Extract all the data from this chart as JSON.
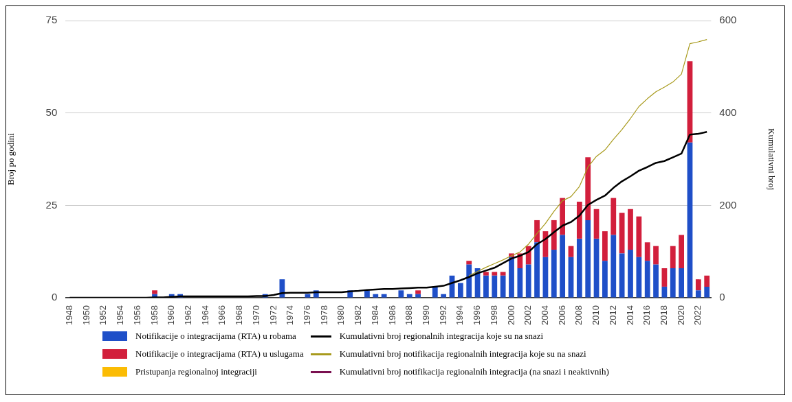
{
  "chart_data": {
    "type": "bar",
    "stacked": true,
    "ylabel": "Broj po godini",
    "y2label": "Kumulativni broj",
    "categories": [
      "1948",
      null,
      "1950",
      null,
      "1952",
      null,
      "1954",
      null,
      "1956",
      null,
      "1958",
      null,
      "1960",
      null,
      "1962",
      null,
      "1964",
      null,
      "1966",
      null,
      "1968",
      null,
      "1970",
      null,
      "1972",
      null,
      "1974",
      null,
      "1976",
      null,
      "1978",
      null,
      "1980",
      null,
      "1982",
      null,
      "1984",
      null,
      "1986",
      null,
      "1988",
      null,
      "1990",
      null,
      "1992",
      null,
      "1994",
      null,
      "1996",
      null,
      "1998",
      null,
      "2000",
      null,
      "2002",
      null,
      "2004",
      null,
      "2006",
      null,
      "2008",
      null,
      "2010",
      null,
      "2012",
      null,
      "2014",
      null,
      "2016",
      null,
      "2018",
      null,
      "2020",
      null,
      "2022",
      null
    ],
    "ylim": [
      0,
      75
    ],
    "yticks": [
      0,
      25,
      50,
      75
    ],
    "y2lim": [
      0,
      600
    ],
    "y2ticks": [
      0,
      200,
      400,
      600
    ],
    "grid": "y",
    "legend": "bottom",
    "series": [
      {
        "name": "Notifikacije o integracijama (RTA) u robama",
        "color": "#1f4fc8",
        "values": [
          null,
          null,
          null,
          null,
          null,
          null,
          null,
          null,
          null,
          null,
          1,
          null,
          1,
          1,
          null,
          null,
          null,
          null,
          null,
          null,
          null,
          null,
          null,
          1,
          null,
          5,
          null,
          null,
          1,
          2,
          null,
          null,
          null,
          2,
          null,
          2,
          1,
          1,
          null,
          2,
          1,
          1,
          null,
          3,
          1,
          6,
          4,
          9,
          8,
          6,
          6,
          6,
          11,
          8,
          9,
          15,
          11,
          13,
          17,
          11,
          16,
          21,
          16,
          10,
          17,
          12,
          13,
          11,
          10,
          9,
          3,
          8,
          8,
          42,
          2,
          3
        ]
      },
      {
        "name": "Notifikacije o integracijama (RTA) u uslugama",
        "color": "#d21f3c",
        "values": [
          null,
          null,
          null,
          null,
          null,
          null,
          null,
          null,
          null,
          null,
          1,
          null,
          null,
          null,
          null,
          null,
          null,
          null,
          null,
          null,
          null,
          null,
          null,
          null,
          null,
          null,
          null,
          null,
          null,
          null,
          null,
          null,
          null,
          null,
          null,
          null,
          null,
          null,
          null,
          null,
          null,
          1,
          null,
          null,
          null,
          null,
          null,
          1,
          null,
          1,
          1,
          1,
          1,
          4,
          5,
          6,
          7,
          8,
          10,
          3,
          10,
          17,
          8,
          8,
          10,
          11,
          11,
          11,
          5,
          5,
          5,
          6,
          9,
          22,
          3,
          3
        ]
      },
      {
        "name": "Pristupanja regionalnoj integraciji",
        "color": "#fbbc04",
        "values": [
          null,
          null,
          null,
          null,
          null,
          null,
          null,
          null,
          null,
          null,
          null,
          null,
          null,
          null,
          null,
          null,
          null,
          null,
          null,
          null,
          null,
          null,
          null,
          null,
          null,
          null,
          null,
          null,
          null,
          null,
          null,
          null,
          null,
          null,
          null,
          null,
          null,
          null,
          null,
          null,
          null,
          null,
          null,
          null,
          null,
          null,
          null,
          null,
          null,
          null,
          null,
          null,
          null,
          null,
          null,
          null,
          null,
          null,
          null,
          null,
          null,
          null,
          null,
          null,
          null,
          null,
          null,
          null,
          null,
          null,
          null,
          null,
          null,
          null,
          null,
          null
        ]
      },
      {
        "name": "Kumulativni broj regionalnih integracija koje su na snazi",
        "type": "line",
        "axis": "y2",
        "color": "#000000",
        "values": [
          0,
          0,
          0,
          0,
          0,
          0,
          0,
          0,
          0,
          0,
          1,
          1,
          2,
          3,
          3,
          3,
          3,
          3,
          3,
          3,
          3,
          3,
          4,
          4,
          6,
          10,
          11,
          11,
          11,
          12,
          12,
          12,
          12,
          14,
          15,
          17,
          18,
          19,
          19,
          20,
          21,
          22,
          22,
          24,
          26,
          32,
          38,
          45,
          53,
          59,
          65,
          75,
          85,
          91,
          99,
          116,
          127,
          142,
          156,
          164,
          178,
          201,
          212,
          221,
          238,
          252,
          263,
          275,
          283,
          292,
          296,
          304,
          312,
          353,
          355,
          359
        ]
      },
      {
        "name": "Kumulativni broj notifikacija regionalnih integracija koje su na snazi",
        "type": "line",
        "axis": "y2",
        "color": "#a89a1c",
        "values": [
          null,
          null,
          null,
          null,
          null,
          null,
          null,
          null,
          null,
          null,
          null,
          null,
          null,
          null,
          null,
          null,
          null,
          null,
          null,
          null,
          null,
          null,
          null,
          null,
          null,
          null,
          null,
          null,
          null,
          null,
          null,
          null,
          null,
          null,
          null,
          null,
          null,
          null,
          null,
          null,
          null,
          null,
          null,
          null,
          null,
          null,
          null,
          48,
          57,
          66,
          74,
          82,
          91,
          99,
          116,
          139,
          161,
          187,
          210,
          219,
          241,
          283,
          306,
          320,
          343,
          364,
          388,
          414,
          431,
          446,
          456,
          467,
          484,
          550,
          554,
          559
        ]
      },
      {
        "name": "Kumulativni broj notifikacija regionalnih integracija (na snazi i neaktivnih)",
        "type": "line",
        "axis": "y2",
        "color": "#7a1050",
        "values": [
          null,
          null,
          null,
          null,
          null,
          null,
          null,
          null,
          null,
          null,
          null,
          null,
          null,
          null,
          null,
          null,
          null,
          null,
          null,
          null,
          null,
          null,
          null,
          null,
          null,
          null,
          null,
          null,
          null,
          null,
          null,
          null,
          null,
          null,
          null,
          null,
          null,
          null,
          null,
          null,
          null,
          null,
          null,
          null,
          null,
          null,
          null,
          null,
          null,
          null,
          null,
          null,
          null,
          null,
          null,
          null,
          null,
          null,
          null,
          null,
          null,
          null,
          null,
          null,
          null,
          null,
          null,
          null,
          null,
          null,
          null,
          null,
          null,
          null,
          null,
          null
        ]
      }
    ]
  }
}
